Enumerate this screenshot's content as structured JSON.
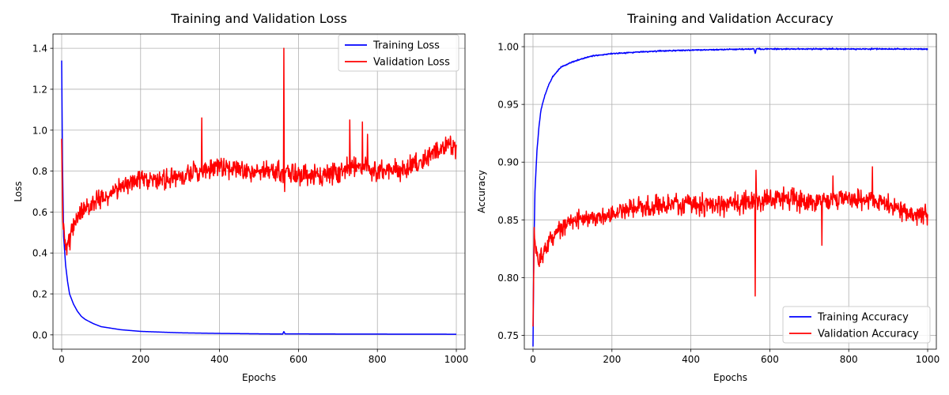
{
  "chart_data": [
    {
      "type": "line",
      "title": "Training and Validation Loss",
      "xlabel": "Epochs",
      "ylabel": "Loss",
      "xlim": [
        -22,
        1022
      ],
      "ylim": [
        -0.07,
        1.47
      ],
      "xticks": [
        0,
        200,
        400,
        600,
        800,
        1000
      ],
      "yticks": [
        0.0,
        0.2,
        0.4,
        0.6,
        0.8,
        1.0,
        1.2,
        1.4
      ],
      "ytick_decimals": 1,
      "grid": true,
      "legend_position": "upper-right",
      "series": [
        {
          "name": "Training Loss",
          "color": "#0000ff",
          "noise": 0.0,
          "points": [
            [
              0,
              1.34
            ],
            [
              2,
              0.85
            ],
            [
              5,
              0.48
            ],
            [
              10,
              0.34
            ],
            [
              15,
              0.26
            ],
            [
              20,
              0.2
            ],
            [
              30,
              0.15
            ],
            [
              40,
              0.115
            ],
            [
              50,
              0.09
            ],
            [
              60,
              0.075
            ],
            [
              80,
              0.055
            ],
            [
              100,
              0.04
            ],
            [
              150,
              0.025
            ],
            [
              200,
              0.017
            ],
            [
              300,
              0.01
            ],
            [
              400,
              0.007
            ],
            [
              500,
              0.005
            ],
            [
              560,
              0.004
            ],
            [
              563,
              0.016
            ],
            [
              566,
              0.005
            ],
            [
              700,
              0.004
            ],
            [
              1000,
              0.003
            ]
          ],
          "spikes": []
        },
        {
          "name": "Validation Loss",
          "color": "#ff0000",
          "noise": 0.045,
          "points": [
            [
              0,
              0.95
            ],
            [
              3,
              0.55
            ],
            [
              8,
              0.44
            ],
            [
              15,
              0.45
            ],
            [
              25,
              0.5
            ],
            [
              40,
              0.58
            ],
            [
              60,
              0.62
            ],
            [
              80,
              0.64
            ],
            [
              100,
              0.66
            ],
            [
              130,
              0.7
            ],
            [
              160,
              0.74
            ],
            [
              200,
              0.75
            ],
            [
              250,
              0.76
            ],
            [
              300,
              0.77
            ],
            [
              350,
              0.8
            ],
            [
              400,
              0.82
            ],
            [
              450,
              0.81
            ],
            [
              500,
              0.8
            ],
            [
              550,
              0.8
            ],
            [
              600,
              0.78
            ],
            [
              650,
              0.78
            ],
            [
              700,
              0.8
            ],
            [
              750,
              0.83
            ],
            [
              800,
              0.8
            ],
            [
              850,
              0.81
            ],
            [
              900,
              0.83
            ],
            [
              950,
              0.9
            ],
            [
              980,
              0.93
            ],
            [
              1000,
              0.92
            ]
          ],
          "spikes": [
            [
              355,
              1.06
            ],
            [
              563,
              1.4
            ],
            [
              565,
              0.7
            ],
            [
              730,
              1.05
            ],
            [
              762,
              1.04
            ],
            [
              775,
              0.98
            ]
          ]
        }
      ]
    },
    {
      "type": "line",
      "title": "Training and Validation Accuracy",
      "xlabel": "Epochs",
      "ylabel": "Accuracy",
      "xlim": [
        -22,
        1022
      ],
      "ylim": [
        0.738,
        1.011
      ],
      "xticks": [
        0,
        200,
        400,
        600,
        800,
        1000
      ],
      "yticks": [
        0.75,
        0.8,
        0.85,
        0.9,
        0.95,
        1.0
      ],
      "ytick_decimals": 2,
      "grid": true,
      "legend_position": "lower-right",
      "series": [
        {
          "name": "Training Accuracy",
          "color": "#0000ff",
          "noise": 0.0005,
          "points": [
            [
              0,
              0.74
            ],
            [
              2,
              0.82
            ],
            [
              5,
              0.875
            ],
            [
              10,
              0.91
            ],
            [
              15,
              0.93
            ],
            [
              20,
              0.945
            ],
            [
              30,
              0.958
            ],
            [
              40,
              0.967
            ],
            [
              50,
              0.974
            ],
            [
              70,
              0.982
            ],
            [
              100,
              0.987
            ],
            [
              150,
              0.992
            ],
            [
              200,
              0.994
            ],
            [
              300,
              0.996
            ],
            [
              400,
              0.997
            ],
            [
              560,
              0.998
            ],
            [
              563,
              0.994
            ],
            [
              566,
              0.998
            ],
            [
              700,
              0.998
            ],
            [
              1000,
              0.998
            ]
          ],
          "spikes": []
        },
        {
          "name": "Validation Accuracy",
          "color": "#ff0000",
          "noise": 0.008,
          "points": [
            [
              0,
              0.76
            ],
            [
              3,
              0.84
            ],
            [
              8,
              0.82
            ],
            [
              15,
              0.815
            ],
            [
              25,
              0.82
            ],
            [
              40,
              0.83
            ],
            [
              60,
              0.84
            ],
            [
              80,
              0.845
            ],
            [
              100,
              0.85
            ],
            [
              150,
              0.852
            ],
            [
              200,
              0.856
            ],
            [
              250,
              0.86
            ],
            [
              300,
              0.862
            ],
            [
              350,
              0.864
            ],
            [
              400,
              0.864
            ],
            [
              450,
              0.863
            ],
            [
              500,
              0.864
            ],
            [
              550,
              0.866
            ],
            [
              600,
              0.868
            ],
            [
              650,
              0.868
            ],
            [
              700,
              0.866
            ],
            [
              750,
              0.866
            ],
            [
              800,
              0.868
            ],
            [
              850,
              0.868
            ],
            [
              900,
              0.863
            ],
            [
              950,
              0.856
            ],
            [
              1000,
              0.855
            ]
          ],
          "spikes": [
            [
              563,
              0.784
            ],
            [
              565,
              0.893
            ],
            [
              860,
              0.896
            ],
            [
              732,
              0.828
            ],
            [
              760,
              0.888
            ]
          ]
        }
      ]
    }
  ]
}
